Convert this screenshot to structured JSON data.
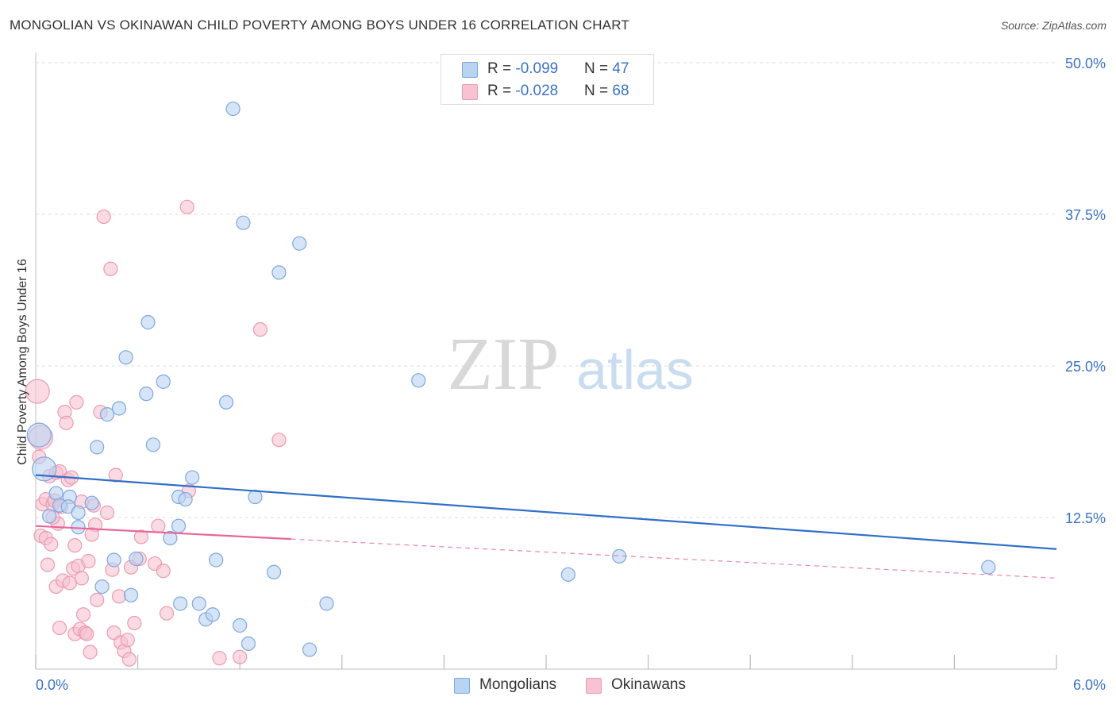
{
  "title": "MONGOLIAN VS OKINAWAN CHILD POVERTY AMONG BOYS UNDER 16 CORRELATION CHART",
  "source": "Source: ZipAtlas.com",
  "watermark": {
    "zip": "ZIP",
    "atlas": "atlas"
  },
  "legend": {
    "mongolians": {
      "r_label": "R = ",
      "r_value": "-0.099",
      "n_label": "N = ",
      "n_value": "47"
    },
    "okinawans": {
      "r_label": "R = ",
      "r_value": "-0.028",
      "n_label": "N = ",
      "n_value": "68"
    }
  },
  "bottom_legend": {
    "mongolians": "Mongolians",
    "okinawans": "Okinawans"
  },
  "colors": {
    "mongolians_fill": "#b9d3f2",
    "mongolians_stroke": "#7fa8dc",
    "mongolians_line": "#2f6fca",
    "okinawans_fill": "#f7c2d1",
    "okinawans_stroke": "#ec9ab2",
    "okinawans_line": "#e8669a",
    "tick_text": "#3a73c5",
    "grid": "#dddddd"
  },
  "chart_data": {
    "type": "scatter",
    "title": "MONGOLIAN VS OKINAWAN CHILD POVERTY AMONG BOYS UNDER 16 CORRELATION CHART",
    "xlabel": "",
    "ylabel": "Child Poverty Among Boys Under 16",
    "xlim": [
      0,
      6
    ],
    "ylim": [
      0,
      50
    ],
    "x_tick_labels": [
      "0.0%",
      "6.0%"
    ],
    "y_ticks": [
      12.5,
      25,
      37.5,
      50
    ],
    "y_tick_labels": [
      "12.5%",
      "25.0%",
      "37.5%",
      "50.0%"
    ],
    "grid": true,
    "legend_position": "top-center",
    "series": [
      {
        "name": "Mongolians",
        "r": -0.099,
        "n": 47,
        "trend": {
          "x": [
            0,
            6
          ],
          "y": [
            16.0,
            9.9
          ]
        },
        "points": [
          {
            "x": 0.02,
            "y": 19.3,
            "big": true
          },
          {
            "x": 0.05,
            "y": 16.5,
            "big": true
          },
          {
            "x": 0.12,
            "y": 14.5
          },
          {
            "x": 0.2,
            "y": 14.2
          },
          {
            "x": 0.08,
            "y": 12.6
          },
          {
            "x": 0.14,
            "y": 13.5
          },
          {
            "x": 0.19,
            "y": 13.4
          },
          {
            "x": 0.25,
            "y": 12.9
          },
          {
            "x": 0.33,
            "y": 13.7
          },
          {
            "x": 0.25,
            "y": 11.7
          },
          {
            "x": 0.36,
            "y": 18.3
          },
          {
            "x": 0.42,
            "y": 21.0
          },
          {
            "x": 0.49,
            "y": 21.5
          },
          {
            "x": 0.53,
            "y": 25.7
          },
          {
            "x": 0.65,
            "y": 22.7
          },
          {
            "x": 0.66,
            "y": 28.6
          },
          {
            "x": 0.69,
            "y": 18.5
          },
          {
            "x": 0.75,
            "y": 23.7
          },
          {
            "x": 0.79,
            "y": 10.8
          },
          {
            "x": 0.84,
            "y": 14.2
          },
          {
            "x": 0.88,
            "y": 14.0
          },
          {
            "x": 0.92,
            "y": 15.8
          },
          {
            "x": 0.46,
            "y": 9.0
          },
          {
            "x": 0.56,
            "y": 6.1
          },
          {
            "x": 0.59,
            "y": 9.1
          },
          {
            "x": 0.39,
            "y": 6.8
          },
          {
            "x": 0.85,
            "y": 5.4
          },
          {
            "x": 0.96,
            "y": 5.4
          },
          {
            "x": 1.0,
            "y": 4.1
          },
          {
            "x": 1.04,
            "y": 4.5
          },
          {
            "x": 1.06,
            "y": 9.0
          },
          {
            "x": 1.12,
            "y": 22.0
          },
          {
            "x": 1.16,
            "y": 46.2
          },
          {
            "x": 1.22,
            "y": 36.8
          },
          {
            "x": 1.2,
            "y": 3.6
          },
          {
            "x": 1.25,
            "y": 2.1
          },
          {
            "x": 1.29,
            "y": 14.2
          },
          {
            "x": 1.4,
            "y": 8.0
          },
          {
            "x": 1.43,
            "y": 32.7
          },
          {
            "x": 1.55,
            "y": 35.1
          },
          {
            "x": 1.61,
            "y": 1.6
          },
          {
            "x": 1.71,
            "y": 5.4
          },
          {
            "x": 2.25,
            "y": 23.8
          },
          {
            "x": 3.13,
            "y": 7.8
          },
          {
            "x": 3.43,
            "y": 9.3
          },
          {
            "x": 5.6,
            "y": 8.4
          },
          {
            "x": 0.84,
            "y": 11.8
          }
        ]
      },
      {
        "name": "Okinawans",
        "r": -0.028,
        "n": 68,
        "trend": {
          "x": [
            0,
            6
          ],
          "y": [
            11.8,
            7.5
          ],
          "solid_to_x": 1.5
        },
        "points": [
          {
            "x": 0.01,
            "y": 22.9,
            "big": true
          },
          {
            "x": 0.03,
            "y": 19.1,
            "big": true
          },
          {
            "x": 0.02,
            "y": 17.5
          },
          {
            "x": 0.04,
            "y": 13.6
          },
          {
            "x": 0.03,
            "y": 11.0
          },
          {
            "x": 0.06,
            "y": 14.0
          },
          {
            "x": 0.06,
            "y": 10.8
          },
          {
            "x": 0.07,
            "y": 8.6
          },
          {
            "x": 0.08,
            "y": 15.9
          },
          {
            "x": 0.09,
            "y": 10.3
          },
          {
            "x": 0.1,
            "y": 13.6
          },
          {
            "x": 0.11,
            "y": 13.9
          },
          {
            "x": 0.12,
            "y": 16.2
          },
          {
            "x": 0.13,
            "y": 12.0
          },
          {
            "x": 0.12,
            "y": 6.8
          },
          {
            "x": 0.14,
            "y": 16.3
          },
          {
            "x": 0.15,
            "y": 13.4
          },
          {
            "x": 0.14,
            "y": 3.4
          },
          {
            "x": 0.16,
            "y": 7.3
          },
          {
            "x": 0.17,
            "y": 21.2
          },
          {
            "x": 0.18,
            "y": 20.3
          },
          {
            "x": 0.19,
            "y": 15.6
          },
          {
            "x": 0.2,
            "y": 7.1
          },
          {
            "x": 0.21,
            "y": 15.8
          },
          {
            "x": 0.22,
            "y": 8.3
          },
          {
            "x": 0.23,
            "y": 10.2
          },
          {
            "x": 0.24,
            "y": 22.0
          },
          {
            "x": 0.23,
            "y": 2.9
          },
          {
            "x": 0.25,
            "y": 8.5
          },
          {
            "x": 0.26,
            "y": 3.3
          },
          {
            "x": 0.27,
            "y": 7.5
          },
          {
            "x": 0.28,
            "y": 4.5
          },
          {
            "x": 0.29,
            "y": 3.0
          },
          {
            "x": 0.3,
            "y": 2.9
          },
          {
            "x": 0.31,
            "y": 8.9
          },
          {
            "x": 0.32,
            "y": 1.4
          },
          {
            "x": 0.34,
            "y": 13.5
          },
          {
            "x": 0.35,
            "y": 11.9
          },
          {
            "x": 0.36,
            "y": 5.7
          },
          {
            "x": 0.38,
            "y": 21.2
          },
          {
            "x": 0.4,
            "y": 37.3
          },
          {
            "x": 0.42,
            "y": 12.9
          },
          {
            "x": 0.44,
            "y": 33.0
          },
          {
            "x": 0.45,
            "y": 8.2
          },
          {
            "x": 0.46,
            "y": 3.0
          },
          {
            "x": 0.47,
            "y": 16.0
          },
          {
            "x": 0.49,
            "y": 6.0
          },
          {
            "x": 0.5,
            "y": 2.2
          },
          {
            "x": 0.52,
            "y": 1.5
          },
          {
            "x": 0.54,
            "y": 2.4
          },
          {
            "x": 0.55,
            "y": 0.8
          },
          {
            "x": 0.56,
            "y": 8.4
          },
          {
            "x": 0.58,
            "y": 3.8
          },
          {
            "x": 0.61,
            "y": 9.1
          },
          {
            "x": 0.7,
            "y": 8.7
          },
          {
            "x": 0.72,
            "y": 11.8
          },
          {
            "x": 0.75,
            "y": 8.1
          },
          {
            "x": 0.77,
            "y": 4.6
          },
          {
            "x": 0.89,
            "y": 38.1
          },
          {
            "x": 0.9,
            "y": 14.7
          },
          {
            "x": 1.08,
            "y": 0.9
          },
          {
            "x": 1.2,
            "y": 1.0
          },
          {
            "x": 1.32,
            "y": 28.0
          },
          {
            "x": 1.43,
            "y": 18.9
          },
          {
            "x": 0.1,
            "y": 12.5
          },
          {
            "x": 0.27,
            "y": 13.8
          },
          {
            "x": 0.33,
            "y": 11.1
          },
          {
            "x": 0.62,
            "y": 10.9
          }
        ]
      }
    ]
  }
}
